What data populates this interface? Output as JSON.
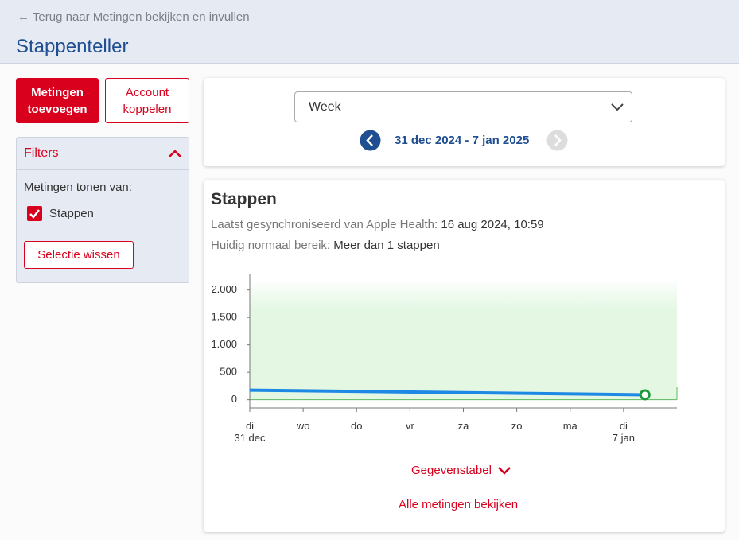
{
  "header": {
    "back_link": "Terug naar Metingen bekijken en invullen",
    "title": "Stappenteller"
  },
  "sidebar": {
    "add_button": "Metingen toevoegen",
    "link_button": "Account koppelen",
    "filters": {
      "title": "Filters",
      "label": "Metingen tonen van:",
      "option": "Stappen",
      "clear": "Selectie wissen"
    }
  },
  "period": {
    "select": "Week",
    "range": "31 dec 2024 - 7 jan 2025"
  },
  "card": {
    "title": "Stappen",
    "sync_label": "Laatst gesynchroniseerd van Apple Health:",
    "sync_value": "16 aug 2024, 10:59",
    "range_label": "Huidig normaal bereik:",
    "range_value": "Meer dan 1 stappen",
    "table_toggle": "Gegevenstabel",
    "all_link": "Alle metingen bekijken"
  },
  "chart_data": {
    "type": "line",
    "x": [
      0,
      7.4
    ],
    "series": [
      {
        "name": "Stappen",
        "color": "#1e88e5",
        "values": [
          175,
          90
        ]
      }
    ],
    "xlim": [
      0,
      8
    ],
    "xticks": [
      {
        "value": 0,
        "label": "di\n31 dec"
      },
      {
        "value": 1,
        "label": "wo"
      },
      {
        "value": 2,
        "label": "do"
      },
      {
        "value": 3,
        "label": "vr"
      },
      {
        "value": 4,
        "label": "za"
      },
      {
        "value": 5,
        "label": "zo"
      },
      {
        "value": 6,
        "label": "ma"
      },
      {
        "value": 7,
        "label": "di\n7 jan"
      }
    ],
    "ylim": [
      -150,
      2300
    ],
    "yticks": [
      {
        "value": 0,
        "label": "0"
      },
      {
        "value": 500,
        "label": "500"
      },
      {
        "value": 1000,
        "label": "1.000"
      },
      {
        "value": 1500,
        "label": "1.500"
      },
      {
        "value": 2000,
        "label": "2.000"
      }
    ],
    "normal_range_min": 1,
    "range_color": "#e3f7e3",
    "marker_color": "#1a9c3c"
  }
}
